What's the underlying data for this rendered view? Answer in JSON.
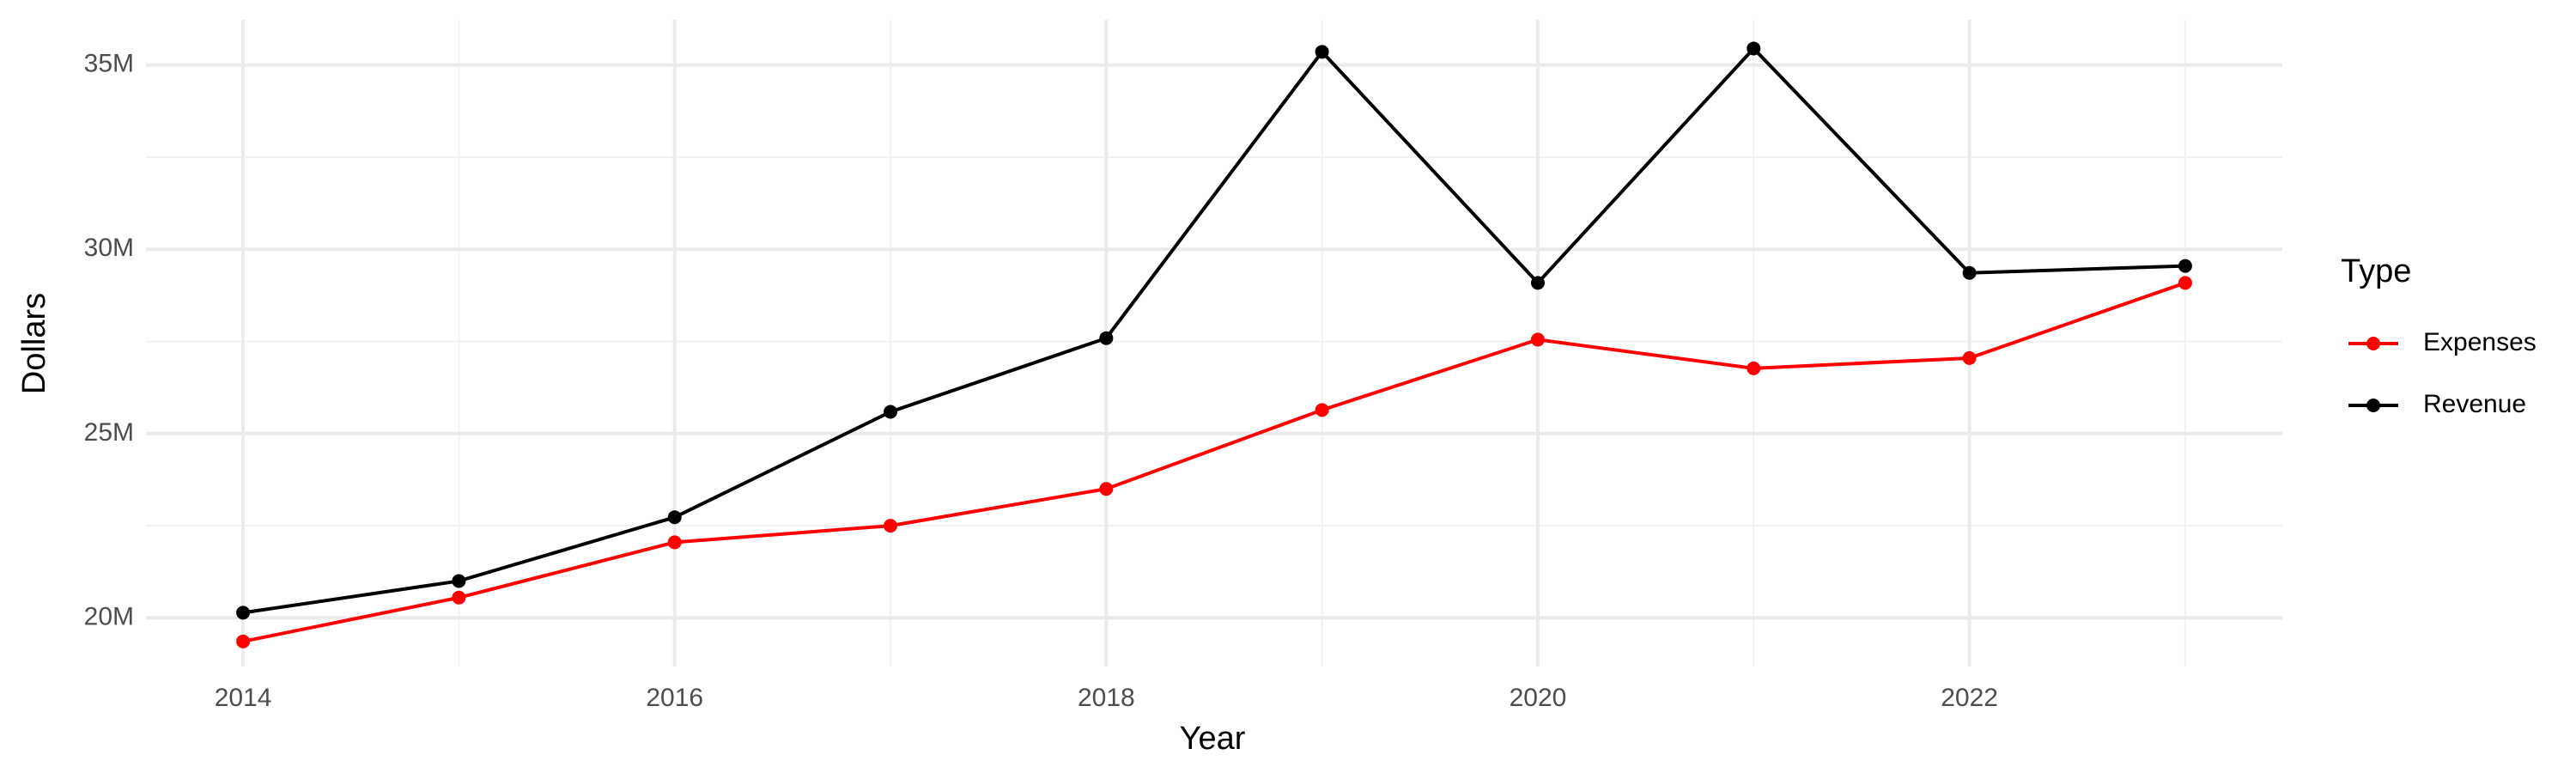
{
  "chart_data": {
    "type": "line",
    "x_label": "Year",
    "y_label": "Dollars",
    "legend_title": "Type",
    "legend_position": "right",
    "grid": true,
    "x": [
      2014,
      2015,
      2016,
      2017,
      2018,
      2019,
      2020,
      2021,
      2022,
      2023
    ],
    "series": [
      {
        "name": "Expenses",
        "color": "#ff0000",
        "values": [
          19360000,
          20550000,
          22050000,
          22500000,
          23500000,
          25640000,
          27550000,
          26770000,
          27050000,
          29090000
        ]
      },
      {
        "name": "Revenue",
        "color": "#000000",
        "values": [
          20140000,
          21000000,
          22730000,
          25590000,
          27590000,
          35360000,
          29090000,
          35450000,
          29360000,
          29550000
        ]
      }
    ],
    "xlim": [
      2013.55,
      2023.45
    ],
    "xticks": [
      2014,
      2016,
      2018,
      2020,
      2022
    ],
    "ylim": [
      18680000,
      36230000
    ],
    "yticks": [
      {
        "value": 20000000,
        "label": "20M"
      },
      {
        "value": 25000000,
        "label": "25M"
      },
      {
        "value": 30000000,
        "label": "30M"
      },
      {
        "value": 35000000,
        "label": "35M"
      }
    ]
  }
}
